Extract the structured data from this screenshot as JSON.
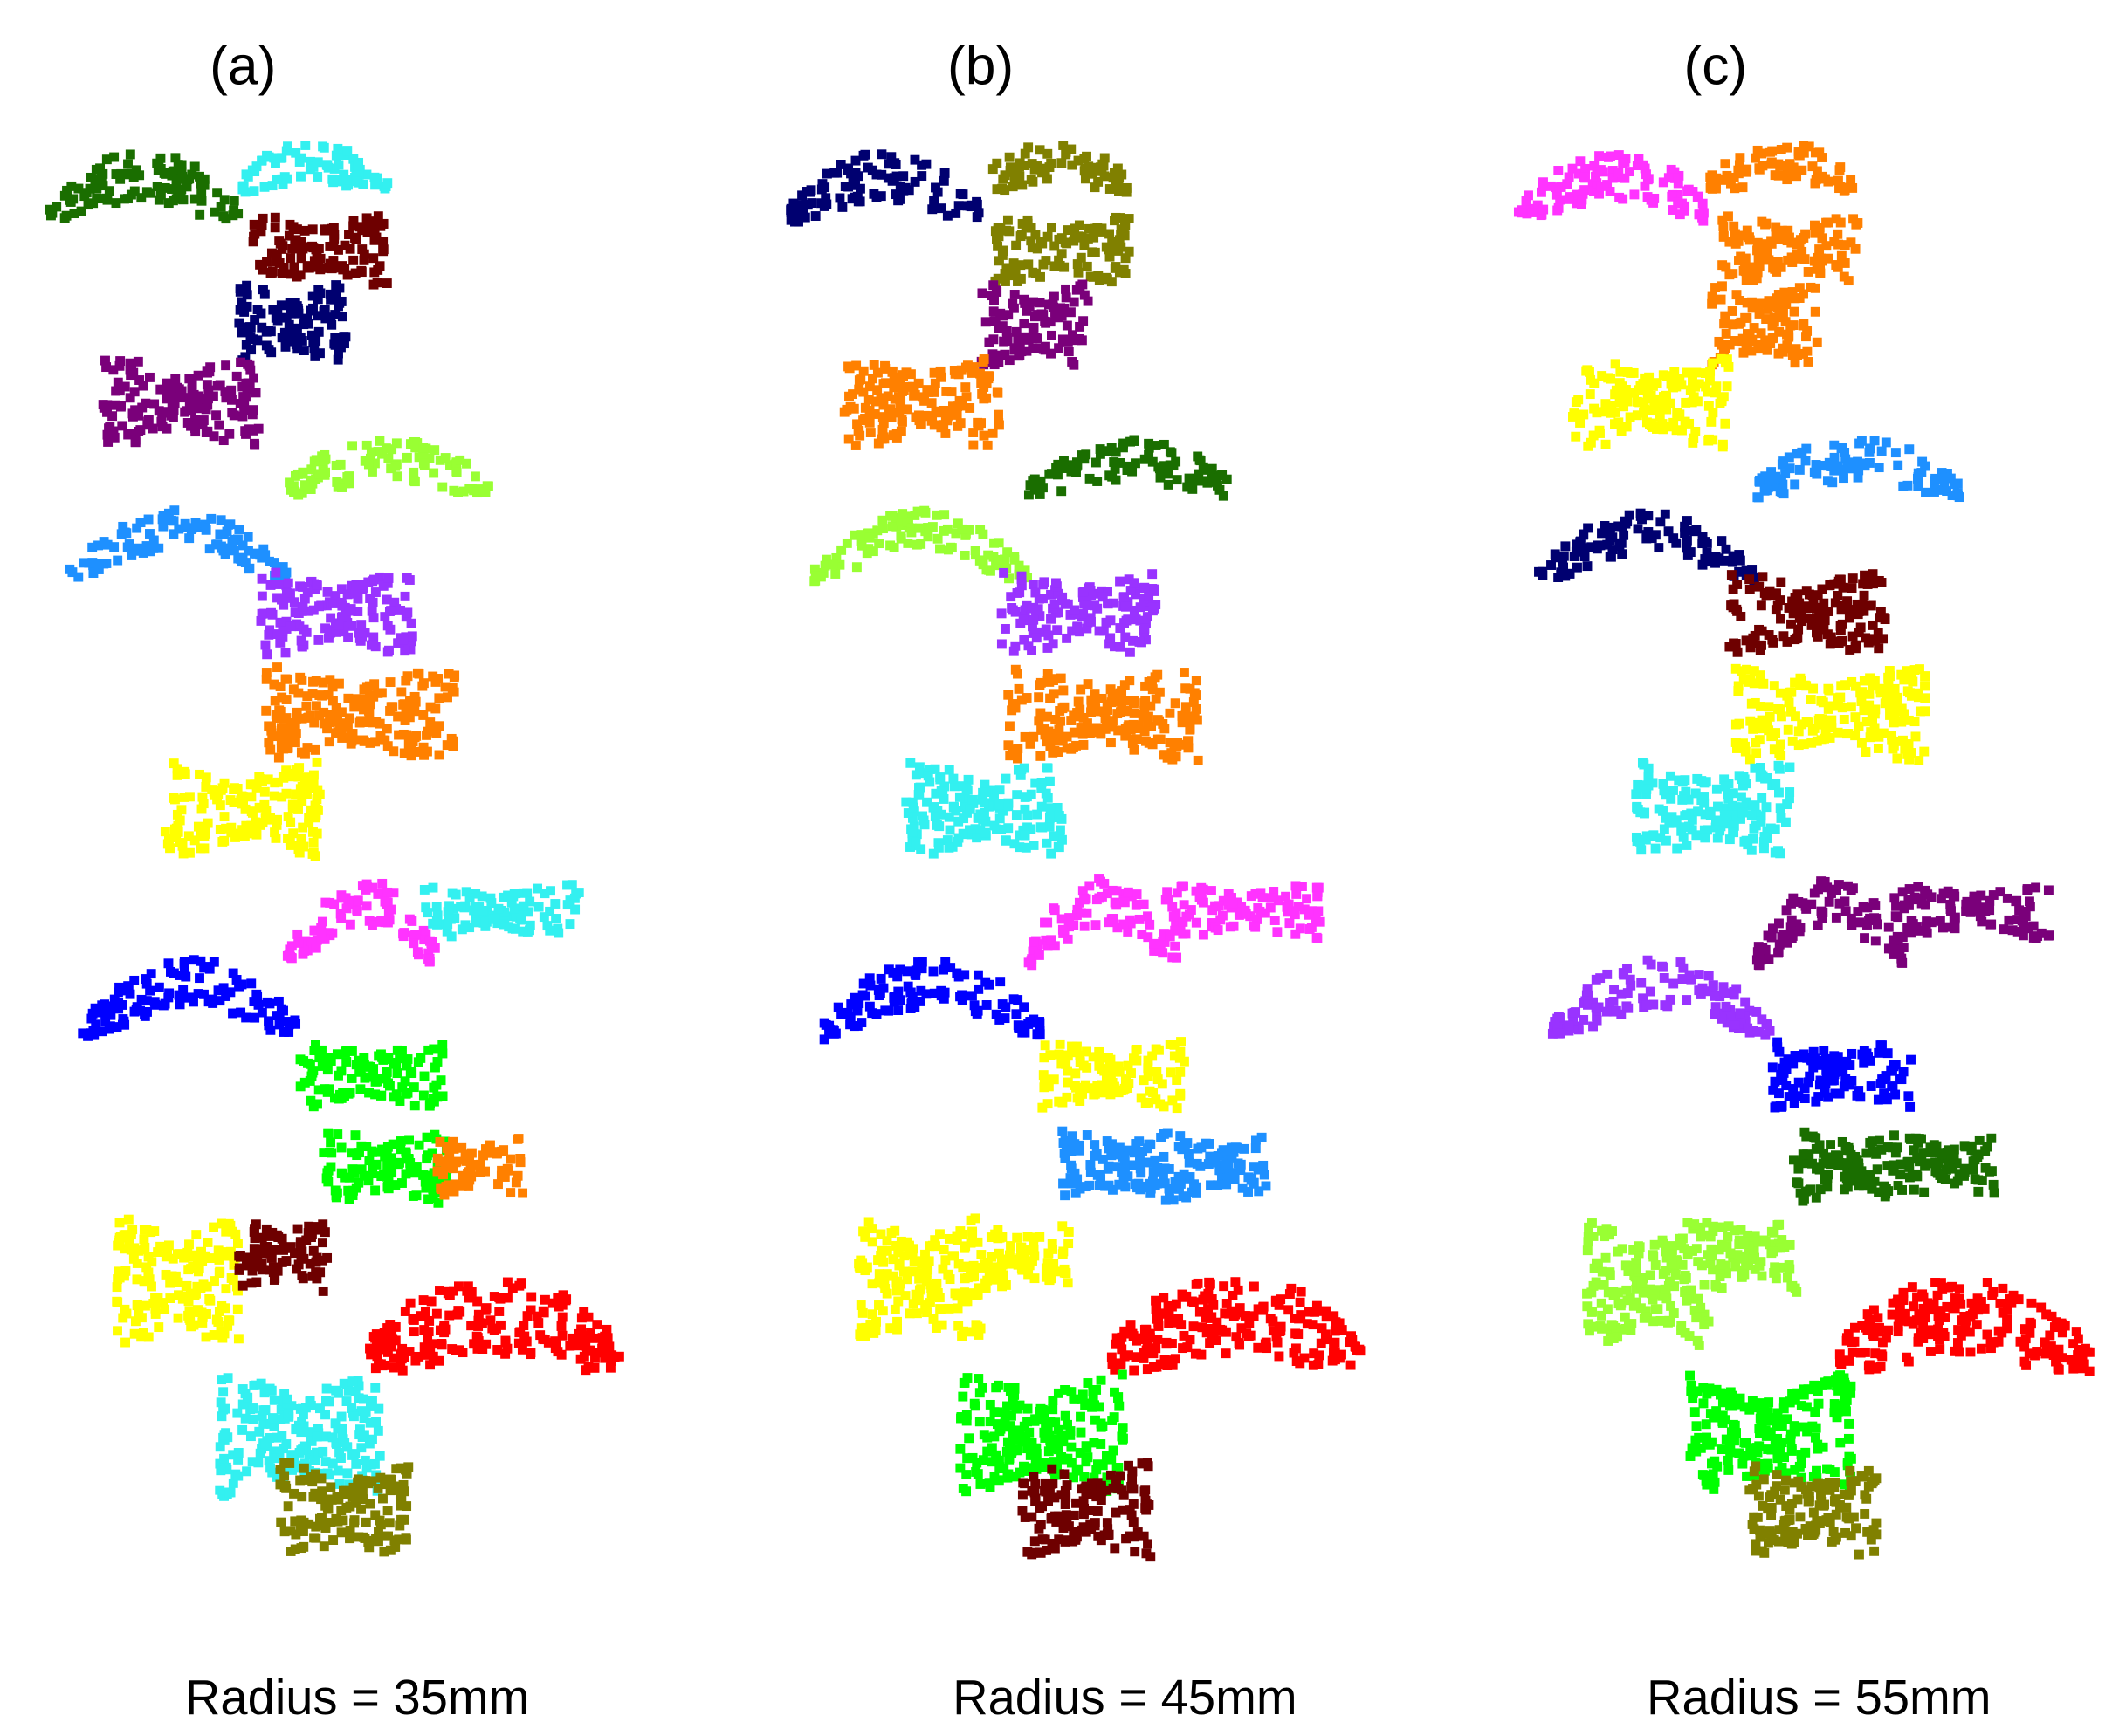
{
  "panels": [
    {
      "label": "(a)",
      "caption": "Radius = 35mm"
    },
    {
      "label": "(b)",
      "caption": "Radius = 45mm"
    },
    {
      "label": "(c)",
      "caption": "Radius = 55mm"
    }
  ]
}
